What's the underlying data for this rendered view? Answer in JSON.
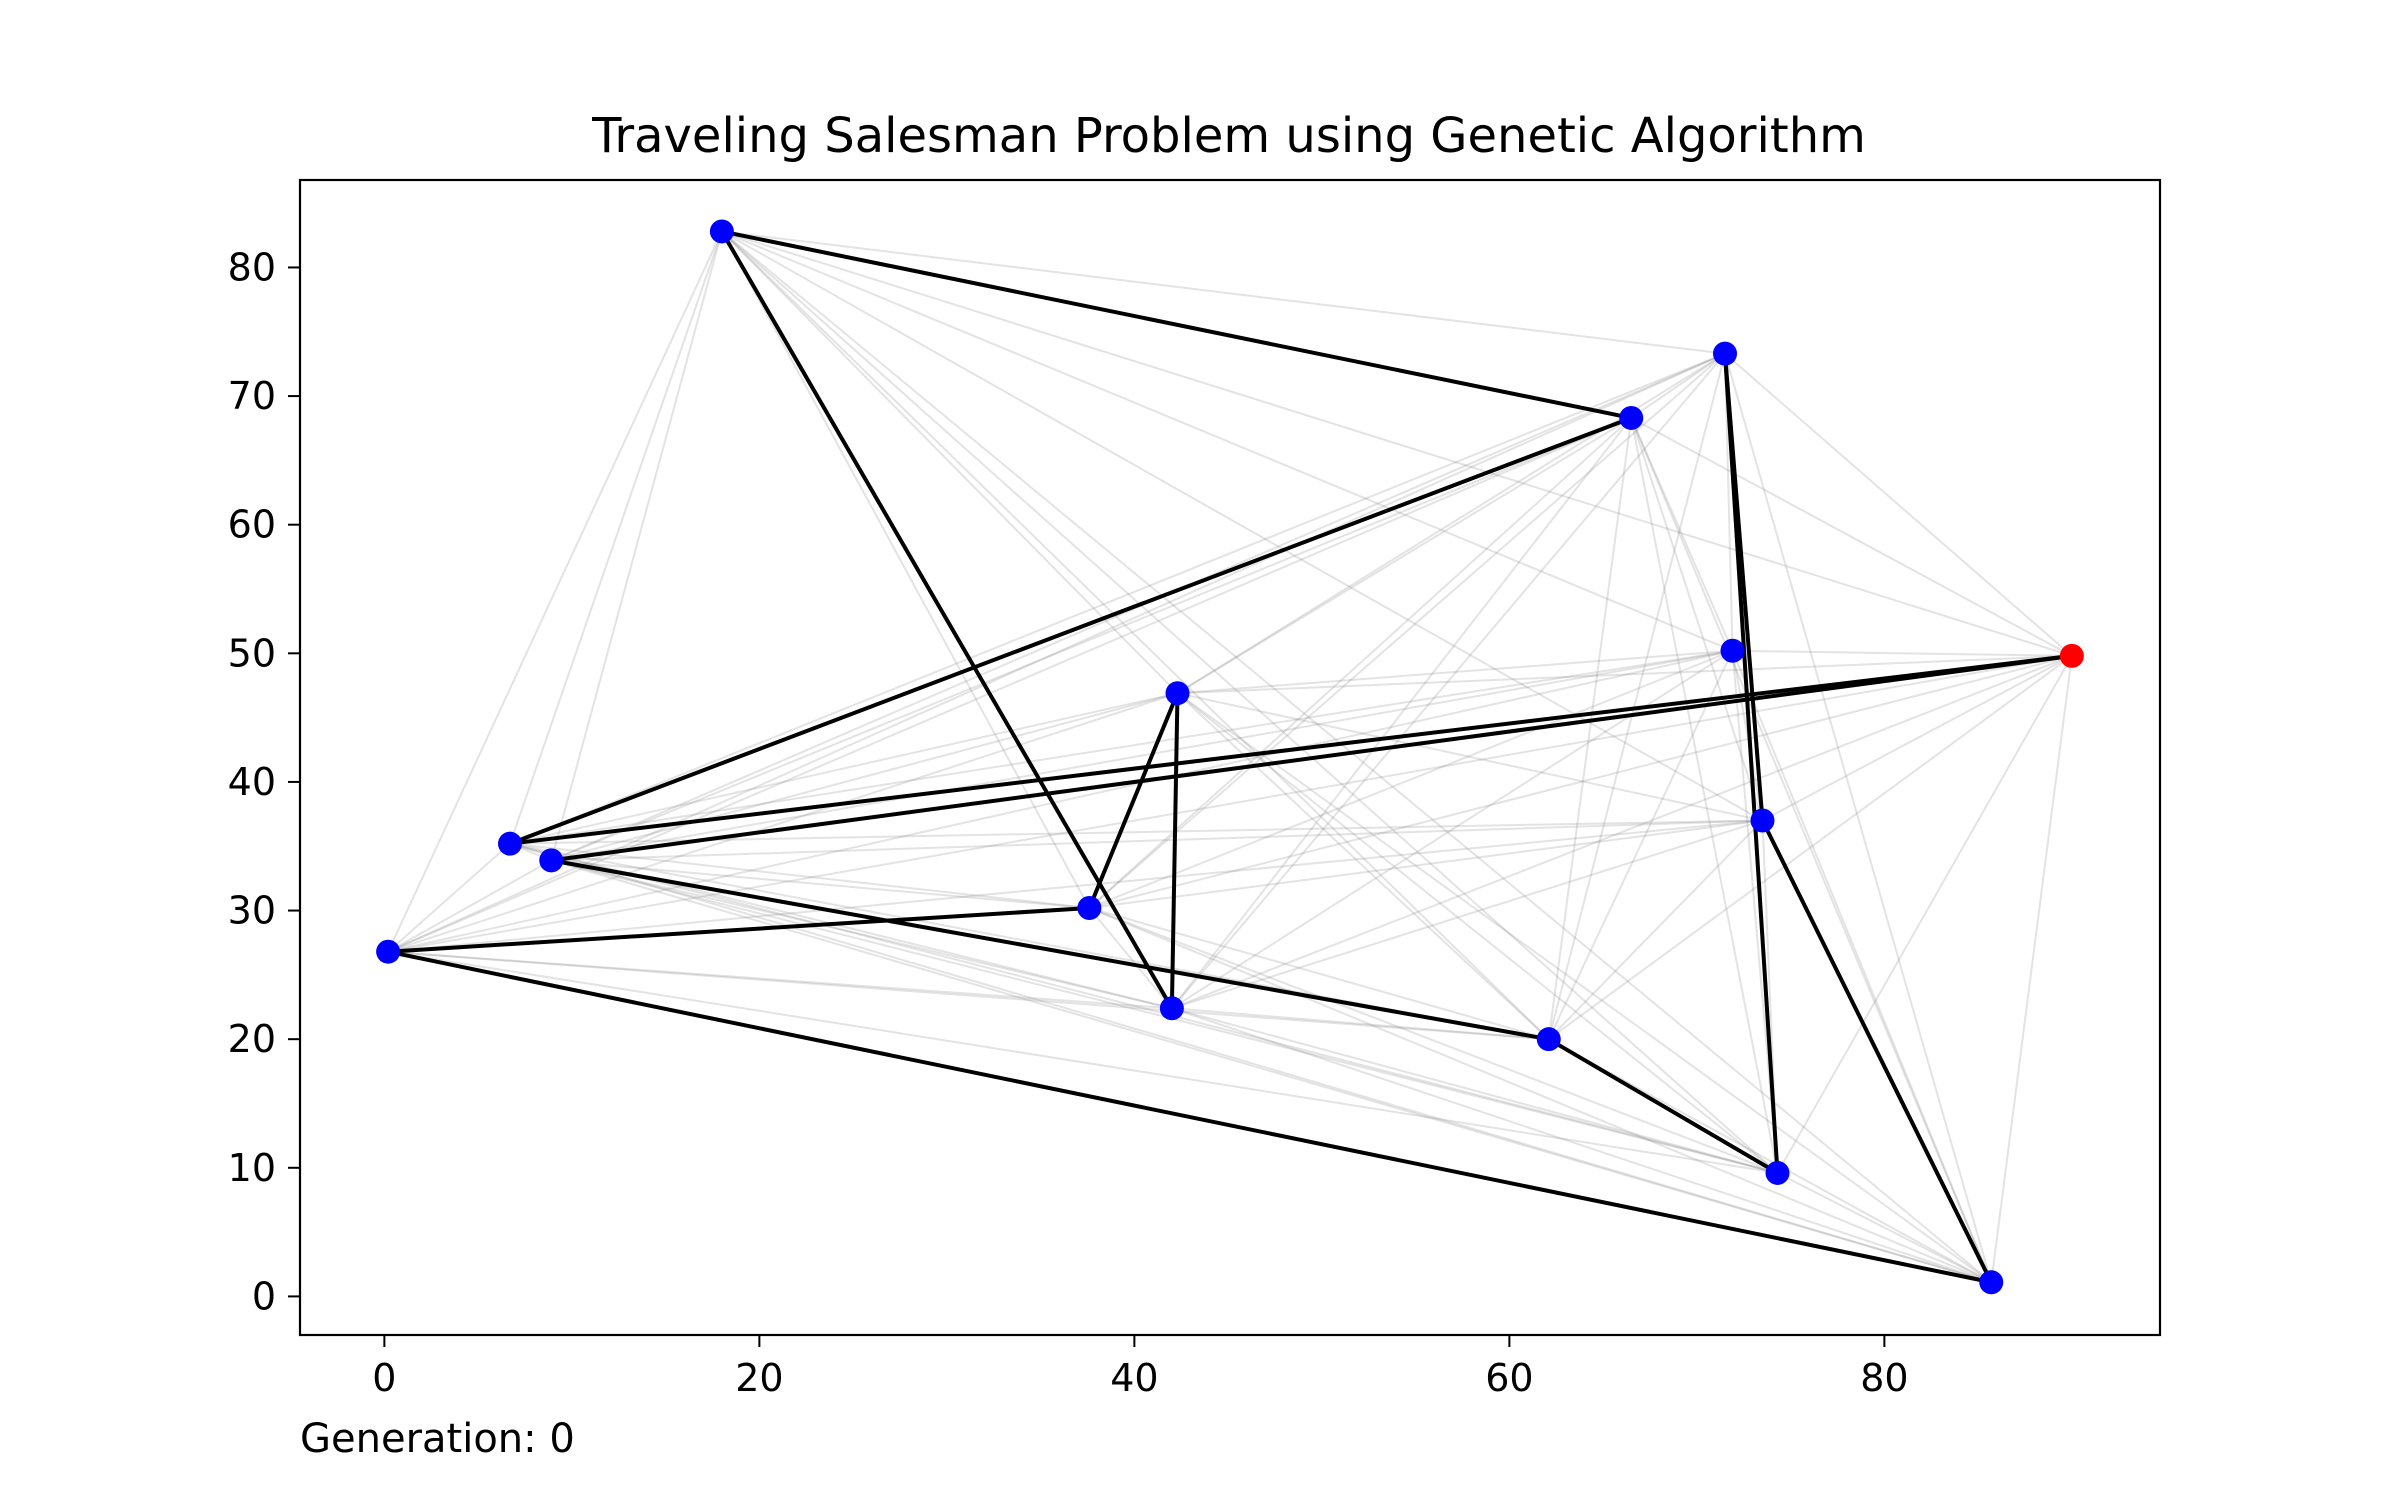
{
  "chart_data": {
    "type": "scatter",
    "title": "Traveling Salesman Problem using Genetic Algorithm",
    "xlabel": "",
    "ylabel": "",
    "xlim": [
      -4.5,
      94.7
    ],
    "ylim": [
      -3.0,
      86.8
    ],
    "xticks": [
      0,
      20,
      40,
      60,
      80
    ],
    "yticks": [
      0,
      10,
      20,
      30,
      40,
      50,
      60,
      70,
      80
    ],
    "grid": false,
    "footer_text": "Generation: 0",
    "colors": {
      "city": "#0000ff",
      "start_city": "#ff0000",
      "route": "#000000",
      "background_edge": "#808080"
    },
    "start_city": {
      "x": 90.0,
      "y": 49.8
    },
    "cities": [
      {
        "x": 18.0,
        "y": 82.8
      },
      {
        "x": 71.5,
        "y": 73.3
      },
      {
        "x": 66.5,
        "y": 68.3
      },
      {
        "x": 71.9,
        "y": 50.2
      },
      {
        "x": 42.3,
        "y": 46.9
      },
      {
        "x": 73.5,
        "y": 37.0
      },
      {
        "x": 6.7,
        "y": 35.2
      },
      {
        "x": 8.9,
        "y": 33.9
      },
      {
        "x": 37.6,
        "y": 30.2
      },
      {
        "x": 0.2,
        "y": 26.8
      },
      {
        "x": 42.0,
        "y": 22.4
      },
      {
        "x": 62.1,
        "y": 20.0
      },
      {
        "x": 74.3,
        "y": 9.6
      },
      {
        "x": 85.7,
        "y": 1.1
      }
    ],
    "route": [
      {
        "x": 90.0,
        "y": 49.8
      },
      {
        "x": 6.7,
        "y": 35.2
      },
      {
        "x": 66.5,
        "y": 68.3
      },
      {
        "x": 18.0,
        "y": 82.8
      },
      {
        "x": 42.0,
        "y": 22.4
      },
      {
        "x": 42.3,
        "y": 46.9
      },
      {
        "x": 37.6,
        "y": 30.2
      },
      {
        "x": 0.2,
        "y": 26.8
      },
      {
        "x": 85.7,
        "y": 1.1
      },
      {
        "x": 73.5,
        "y": 37.0
      },
      {
        "x": 71.5,
        "y": 73.3
      },
      {
        "x": 74.3,
        "y": 9.6
      },
      {
        "x": 62.1,
        "y": 20.0
      },
      {
        "x": 8.9,
        "y": 33.9
      },
      {
        "x": 90.0,
        "y": 49.8
      }
    ]
  }
}
